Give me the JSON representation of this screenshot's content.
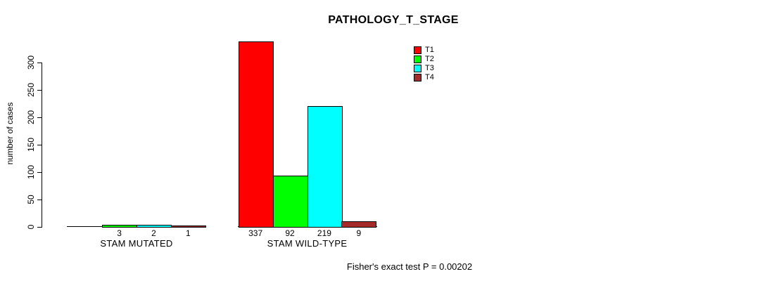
{
  "chart_data": {
    "type": "bar",
    "title": "PATHOLOGY_T_STAGE",
    "ylabel": "number of cases",
    "xlabel": "",
    "categories": [
      "STAM MUTATED",
      "STAM WILD-TYPE"
    ],
    "series": [
      {
        "name": "T1",
        "color": "#ff0000",
        "values": [
          null,
          337
        ]
      },
      {
        "name": "T2",
        "color": "#00ff00",
        "values": [
          3,
          92
        ]
      },
      {
        "name": "T3",
        "color": "#00ffff",
        "values": [
          2,
          219
        ]
      },
      {
        "name": "T4",
        "color": "#a52a2a",
        "values": [
          1,
          9
        ]
      }
    ],
    "bar_value_labels_shown": true,
    "yticks": [
      0,
      50,
      100,
      150,
      200,
      250,
      300
    ],
    "ylim": [
      0,
      340
    ],
    "grid": false,
    "legend_position": "upper-right",
    "annotation": "Fisher's exact test P = 0.00202"
  }
}
